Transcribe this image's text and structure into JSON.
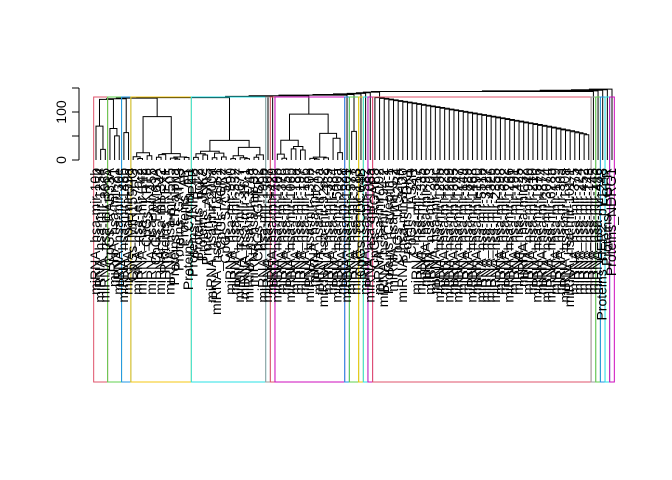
{
  "chart_data": {
    "type": "dendrogram",
    "title": "",
    "xlabel": "",
    "ylabel": "",
    "ylim": [
      0,
      150
    ],
    "y_ticks": [
      {
        "value": 0,
        "label": "0"
      },
      {
        "value": 100,
        "label": "100"
      }
    ],
    "leaf_count": 112,
    "leaf_labels": [
      "miRNA_hsa-mir-10b",
      "miRNA_hsa-mir-1254",
      "miRNA_hsa-mir-3065",
      "CpGs_RAB33A",
      "miRNA_hsa-mir-21",
      "miRNA_hsa-mir-30e",
      "miRNA_hsa-mir-146b",
      "miRNA_hsa-mir-99a",
      "CpGs_MIR155HG",
      "miRNA_hsa-let-7a-2",
      "miRNA_hsa-mir-142",
      "CpGs_KRT8",
      "miRNA_hsa-mir-455",
      "CpGs_FAM63A",
      "miRNA_hsa-mir-342",
      "Proteins_PREX1",
      "miRNA_hsa-mir-505",
      "Proteins_ER-alpha",
      "Proteins_GATA3",
      "Proteins_AR",
      "Proteins_Cyclin_E1",
      "Proteins_INPP4B",
      "Proteins_Bcl-2",
      "Proteins_JNK2",
      "Proteins_ASNS",
      "miRNA_hsa-mir-200a",
      "miRNA_hsa-mir-181b-1",
      "CpGs_AGR2",
      "CpGs_SLC5A7",
      "miRNA_hsa-mir-590",
      "miRNA_hsa-mir-532",
      "miRNA_hsa-mir-3677",
      "miRNA_hsa-mir-16-1",
      "miRNA_hsa-mir-374a",
      "miRNA_hsa-mir-93",
      "CpGs_IGFBP2",
      "miRNA_hsa-mir-199b",
      "miRNA_hsa-mir-1307",
      "miRNA_hsa-mir-429",
      "miRNA_hsa-mir-148b",
      "miRNA_hsa-mir-378",
      "miRNA_hsa-mir-15b",
      "miRNA_hsa-mir-106b",
      "miRNA_hsa-mir-18a",
      "miRNA_hsa-mir-197",
      "miRNA_hsa-mir-186",
      "miRNA_hsa-mir-130b",
      "miRNA_hsa-mir-17",
      "miRNA_hsa-mir-20a",
      "miRNA_hsa-mir-92a-2",
      "miRNA_hsa-mir-339",
      "miRNA_hsa-mir-484",
      "miRNA_hsa-mir-500a",
      "miRNA_hsa-mir-628",
      "miRNA_hsa-mir-1301",
      "miRNA_hsa-mir-577",
      "miRNA_hsa-mir-183",
      "CpGs_CCDC64B",
      "miRNA_hsa-mir-582",
      "miRNA_hsa-mir-106a",
      "CpGs_SRGAP3",
      "miRNA_hsa-mir-192",
      "miRNA_hsa-mir-194-2",
      "Proteins_Caveolin-1",
      "miRNA_hsa-mir-9-2",
      "CpGs_TAS2R4",
      "miRNA_hsa-mir-3130",
      "Proteins_PDK1",
      "CpGs_TAS2R",
      "miRNA_hsa-mir-217",
      "miRNA_hsa-mir-335",
      "miRNA_hsa-mir-96",
      "miRNA_hsa-mir-203",
      "miRNA_hsa-mir-34c",
      "miRNA_hsa-mir-125b",
      "miRNA_hsa-mir-223",
      "miRNA_hsa-mir-1269",
      "miRNA_hsa-mir-365",
      "miRNA_hsa-mir-1247",
      "miRNA_hsa-mir-149",
      "miRNA_hsa-mir-889",
      "miRNA_hsa-mir-1468",
      "miRNA_hsa-mir-190",
      "miRNA_hsa-mir-551b",
      "miRNA_hsa-mir-3127",
      "miRNA_hsa-mir-4326",
      "miRNA_hsa-mir-2355",
      "miRNA_hsa-mir-598",
      "miRNA_hsa-mir-652",
      "miRNA_hsa-mir-1266",
      "miRNA_hsa-mir-191",
      "miRNA_hsa-mir-425",
      "miRNA_hsa-mir-32",
      "miRNA_hsa-mir-940",
      "miRNA_hsa-mir-210",
      "miRNA_hsa-mir-1976",
      "miRNA_hsa-mir-874",
      "miRNA_hsa-mir-3074",
      "miRNA_hsa-mir-628b",
      "miRNA_hsa-mir-139",
      "miRNA_hsa-mir-30a",
      "miRNA_hsa-mir-130a",
      "miRNA_hsa-mir-101-1",
      "miRNA_hsa-mir-375",
      "miRNA_hsa-mir-224",
      "miRNA_hsa-mir-452",
      "miRNA_hsa-mir-143",
      "miRNA_hsa-mir-145",
      "miRNA_hsa-mir-486",
      "Proteins_HER2_pY1248",
      "Proteins_EGFR",
      "Proteins_NDRG1"
    ],
    "clusters": [
      {
        "from": 0,
        "to": 3,
        "color": "#DF536B"
      },
      {
        "from": 3,
        "to": 6,
        "color": "#61D04F"
      },
      {
        "from": 6,
        "to": 8,
        "color": "#2297E6"
      },
      {
        "from": 8,
        "to": 21,
        "color": "#F5C710"
      },
      {
        "from": 21,
        "to": 37,
        "color": "#28E2E5"
      },
      {
        "from": 37,
        "to": 38,
        "color": "#9E9E9E"
      },
      {
        "from": 38,
        "to": 39,
        "color": "#DF536B"
      },
      {
        "from": 39,
        "to": 54,
        "color": "#CD0BBC"
      },
      {
        "from": 54,
        "to": 55,
        "color": "#2297E6"
      },
      {
        "from": 55,
        "to": 57,
        "color": "#61D04F"
      },
      {
        "from": 57,
        "to": 58,
        "color": "#F5C710"
      },
      {
        "from": 58,
        "to": 59,
        "color": "#28E2E5"
      },
      {
        "from": 59,
        "to": 60,
        "color": "#CD0BBC"
      },
      {
        "from": 60,
        "to": 107,
        "color": "#DF536B"
      },
      {
        "from": 107,
        "to": 108,
        "color": "#9E9E9E"
      },
      {
        "from": 108,
        "to": 109,
        "color": "#61D04F"
      },
      {
        "from": 109,
        "to": 110,
        "color": "#2297E6"
      },
      {
        "from": 110,
        "to": 111,
        "color": "#28E2E5"
      },
      {
        "from": 111,
        "to": 112,
        "color": "#CD0BBC"
      }
    ]
  }
}
